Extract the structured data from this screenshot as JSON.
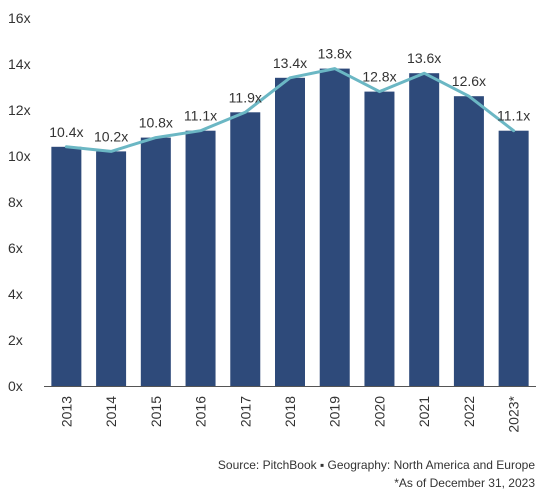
{
  "chart_data": {
    "type": "bar",
    "categories": [
      "2013",
      "2014",
      "2015",
      "2016",
      "2017",
      "2018",
      "2019",
      "2020",
      "2021",
      "2022",
      "2023*"
    ],
    "series": [
      {
        "type": "bar",
        "values": [
          10.4,
          10.2,
          10.8,
          11.1,
          11.9,
          13.4,
          13.8,
          12.8,
          13.6,
          12.6,
          11.1
        ]
      },
      {
        "type": "line",
        "values": [
          10.4,
          10.2,
          10.8,
          11.1,
          11.9,
          13.4,
          13.8,
          12.8,
          13.6,
          12.6,
          11.1
        ]
      }
    ],
    "data_labels": [
      "10.4x",
      "10.2x",
      "10.8x",
      "11.1x",
      "11.9x",
      "13.4x",
      "13.8x",
      "12.8x",
      "13.6x",
      "12.6x",
      "11.1x"
    ],
    "y_ticks": [
      0,
      2,
      4,
      6,
      8,
      10,
      12,
      14,
      16
    ],
    "y_tick_labels": [
      "0x",
      "2x",
      "4x",
      "6x",
      "8x",
      "10x",
      "12x",
      "14x",
      "16x"
    ],
    "ylim": [
      0,
      16
    ],
    "grid": false,
    "legend": "none",
    "colors": {
      "bar": "#2e4a7a",
      "line": "#6bb7c4"
    }
  },
  "footer": {
    "source": "Source: PitchBook  ▪  Geography: North America and Europe",
    "note": "*As of December 31, 2023"
  }
}
